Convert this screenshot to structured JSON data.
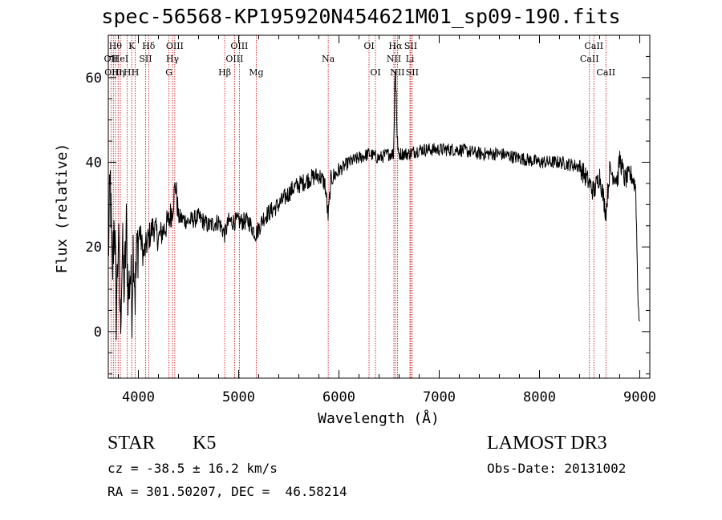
{
  "header": {
    "title": "spec-56568-KP195920N454621M01_sp09-190.fits"
  },
  "footer": {
    "class_label": "STAR",
    "subclass_label": "K5",
    "survey_label": "LAMOST DR3",
    "cz_label": "cz = -38.5 ± 16.2 km/s",
    "obs_date_label": "Obs-Date: 20131002",
    "coords_label": "RA = 301.50207, DEC =  46.58214"
  },
  "colors": {
    "line_marker": "#cc0000",
    "spectrum": "#000000",
    "axes": "#000000"
  },
  "chart_data": {
    "type": "line",
    "title": "spec-56568-KP195920N454621M01_sp09-190.fits",
    "xlabel": "Wavelength (Å)",
    "ylabel": "Flux (relative)",
    "xlim": [
      3700,
      9100
    ],
    "ylim": [
      -11,
      70
    ],
    "x_ticks": [
      4000,
      5000,
      6000,
      7000,
      8000,
      9000
    ],
    "y_ticks": [
      0,
      20,
      40,
      60
    ],
    "spectrum_anchor_points": [
      {
        "x": 3700,
        "y": 18
      },
      {
        "x": 3720,
        "y": 35
      },
      {
        "x": 3740,
        "y": 12
      },
      {
        "x": 3760,
        "y": 28
      },
      {
        "x": 3780,
        "y": 5
      },
      {
        "x": 3800,
        "y": 22
      },
      {
        "x": 3820,
        "y": 2
      },
      {
        "x": 3840,
        "y": 19
      },
      {
        "x": 3860,
        "y": 10
      },
      {
        "x": 3880,
        "y": 24
      },
      {
        "x": 3900,
        "y": 8
      },
      {
        "x": 3920,
        "y": 15
      },
      {
        "x": 3935,
        "y": 6
      },
      {
        "x": 3950,
        "y": 22
      },
      {
        "x": 3968,
        "y": 9
      },
      {
        "x": 3990,
        "y": 20
      },
      {
        "x": 4010,
        "y": 24
      },
      {
        "x": 4050,
        "y": 18
      },
      {
        "x": 4100,
        "y": 22
      },
      {
        "x": 4150,
        "y": 25
      },
      {
        "x": 4200,
        "y": 22
      },
      {
        "x": 4250,
        "y": 24
      },
      {
        "x": 4300,
        "y": 26
      },
      {
        "x": 4340,
        "y": 29
      },
      {
        "x": 4370,
        "y": 35
      },
      {
        "x": 4400,
        "y": 27
      },
      {
        "x": 4500,
        "y": 26
      },
      {
        "x": 4600,
        "y": 27
      },
      {
        "x": 4700,
        "y": 25
      },
      {
        "x": 4800,
        "y": 26
      },
      {
        "x": 4861,
        "y": 23
      },
      {
        "x": 4900,
        "y": 26
      },
      {
        "x": 5000,
        "y": 26
      },
      {
        "x": 5100,
        "y": 26
      },
      {
        "x": 5172,
        "y": 23
      },
      {
        "x": 5250,
        "y": 27
      },
      {
        "x": 5400,
        "y": 30
      },
      {
        "x": 5550,
        "y": 34
      },
      {
        "x": 5700,
        "y": 36
      },
      {
        "x": 5800,
        "y": 37
      },
      {
        "x": 5860,
        "y": 35
      },
      {
        "x": 5893,
        "y": 27
      },
      {
        "x": 5920,
        "y": 36
      },
      {
        "x": 6000,
        "y": 38
      },
      {
        "x": 6100,
        "y": 40
      },
      {
        "x": 6200,
        "y": 41
      },
      {
        "x": 6300,
        "y": 42
      },
      {
        "x": 6400,
        "y": 41
      },
      {
        "x": 6500,
        "y": 42
      },
      {
        "x": 6545,
        "y": 42
      },
      {
        "x": 6555,
        "y": 58
      },
      {
        "x": 6563,
        "y": 62
      },
      {
        "x": 6572,
        "y": 56
      },
      {
        "x": 6585,
        "y": 42
      },
      {
        "x": 6700,
        "y": 42
      },
      {
        "x": 6800,
        "y": 43
      },
      {
        "x": 7000,
        "y": 43
      },
      {
        "x": 7200,
        "y": 43
      },
      {
        "x": 7400,
        "y": 42
      },
      {
        "x": 7600,
        "y": 42
      },
      {
        "x": 7800,
        "y": 41
      },
      {
        "x": 8000,
        "y": 40
      },
      {
        "x": 8200,
        "y": 40
      },
      {
        "x": 8400,
        "y": 39
      },
      {
        "x": 8498,
        "y": 35
      },
      {
        "x": 8542,
        "y": 33
      },
      {
        "x": 8600,
        "y": 37
      },
      {
        "x": 8662,
        "y": 28
      },
      {
        "x": 8700,
        "y": 38
      },
      {
        "x": 8780,
        "y": 36
      },
      {
        "x": 8800,
        "y": 41
      },
      {
        "x": 8850,
        "y": 36
      },
      {
        "x": 8920,
        "y": 37
      },
      {
        "x": 8960,
        "y": 34
      },
      {
        "x": 8980,
        "y": 10
      },
      {
        "x": 9000,
        "y": 0
      }
    ],
    "line_markers": [
      {
        "wavelength": 3727,
        "label": "OII",
        "row": 2
      },
      {
        "wavelength": 3750,
        "label": "OIII",
        "row": 3
      },
      {
        "wavelength": 3771,
        "label": "Hθ",
        "row": 1
      },
      {
        "wavelength": 3798,
        "label": "Hη",
        "row": 3
      },
      {
        "wavelength": 3820,
        "label": "HeI",
        "row": 2
      },
      {
        "wavelength": 3889,
        "label": "H",
        "row": 3
      },
      {
        "wavelength": 3934,
        "label": "K",
        "row": 1
      },
      {
        "wavelength": 3968,
        "label": "H",
        "row": 3
      },
      {
        "wavelength": 4072,
        "label": "SII",
        "row": 2
      },
      {
        "wavelength": 4102,
        "label": "Hδ",
        "row": 1
      },
      {
        "wavelength": 4305,
        "label": "G",
        "row": 3
      },
      {
        "wavelength": 4340,
        "label": "Hγ",
        "row": 2
      },
      {
        "wavelength": 4363,
        "label": "OIII",
        "row": 1
      },
      {
        "wavelength": 4861,
        "label": "Hβ",
        "row": 3
      },
      {
        "wavelength": 4959,
        "label": "OIII",
        "row": 2
      },
      {
        "wavelength": 5007,
        "label": "OIII",
        "row": 1
      },
      {
        "wavelength": 5175,
        "label": "Mg",
        "row": 3
      },
      {
        "wavelength": 5893,
        "label": "Na",
        "row": 2
      },
      {
        "wavelength": 6300,
        "label": "OI",
        "row": 1
      },
      {
        "wavelength": 6364,
        "label": "OI",
        "row": 3
      },
      {
        "wavelength": 6548,
        "label": "NII",
        "row": 2
      },
      {
        "wavelength": 6563,
        "label": "Hα",
        "row": 1
      },
      {
        "wavelength": 6583,
        "label": "NII",
        "row": 3
      },
      {
        "wavelength": 6708,
        "label": "Li",
        "row": 2
      },
      {
        "wavelength": 6716,
        "label": "SII",
        "row": 1
      },
      {
        "wavelength": 6731,
        "label": "SII",
        "row": 3
      },
      {
        "wavelength": 8498,
        "label": "CaII",
        "row": 2
      },
      {
        "wavelength": 8542,
        "label": "CaII",
        "row": 1
      },
      {
        "wavelength": 8662,
        "label": "CaII",
        "row": 3
      }
    ]
  }
}
